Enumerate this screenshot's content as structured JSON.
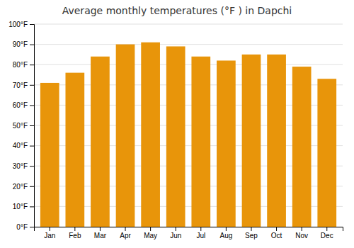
{
  "chart_data": {
    "type": "bar",
    "title": "Average monthly temperatures (°F ) in Dapchi",
    "categories": [
      "Jan",
      "Feb",
      "Mar",
      "Apr",
      "May",
      "Jun",
      "Jul",
      "Aug",
      "Sep",
      "Oct",
      "Nov",
      "Dec"
    ],
    "values": [
      71,
      76,
      84,
      90,
      91,
      89,
      84,
      82,
      85,
      85,
      79,
      73
    ],
    "color": "#E8950A",
    "ylim": [
      0,
      100
    ],
    "yticks": [
      {
        "value": 0,
        "label": "0°F"
      },
      {
        "value": 10,
        "label": "10°F"
      },
      {
        "value": 20,
        "label": "20°F"
      },
      {
        "value": 30,
        "label": "30°F"
      },
      {
        "value": 40,
        "label": "40°F"
      },
      {
        "value": 50,
        "label": "50°F"
      },
      {
        "value": 60,
        "label": "60°F"
      },
      {
        "value": 70,
        "label": "70°F"
      },
      {
        "value": 80,
        "label": "80°F"
      },
      {
        "value": 90,
        "label": "90°F"
      },
      {
        "value": 100,
        "label": "100°F"
      }
    ],
    "grid": true
  }
}
